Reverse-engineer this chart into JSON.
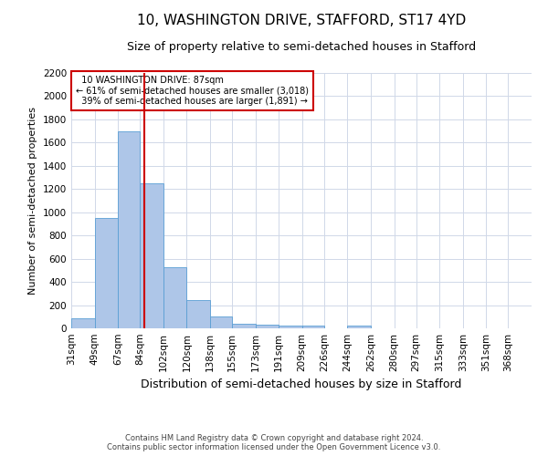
{
  "title": "10, WASHINGTON DRIVE, STAFFORD, ST17 4YD",
  "subtitle": "Size of property relative to semi-detached houses in Stafford",
  "xlabel": "Distribution of semi-detached houses by size in Stafford",
  "ylabel": "Number of semi-detached properties",
  "footer_line1": "Contains HM Land Registry data © Crown copyright and database right 2024.",
  "footer_line2": "Contains public sector information licensed under the Open Government Licence v3.0.",
  "annotation_title": "10 WASHINGTON DRIVE: 87sqm",
  "annotation_line1": "← 61% of semi-detached houses are smaller (3,018)",
  "annotation_line2": "39% of semi-detached houses are larger (1,891) →",
  "property_size": 87,
  "bar_edges": [
    31,
    49,
    67,
    84,
    102,
    120,
    138,
    155,
    173,
    191,
    209,
    226,
    244,
    262,
    280,
    297,
    315,
    333,
    351,
    368,
    386
  ],
  "bar_heights": [
    90,
    950,
    1700,
    1250,
    530,
    240,
    100,
    40,
    30,
    20,
    20,
    0,
    25,
    0,
    0,
    0,
    0,
    0,
    0,
    0
  ],
  "bar_color": "#aec6e8",
  "bar_edge_color": "#5a9fd4",
  "vline_color": "#cc0000",
  "vline_x": 87,
  "ylim": [
    0,
    2200
  ],
  "yticks": [
    0,
    200,
    400,
    600,
    800,
    1000,
    1200,
    1400,
    1600,
    1800,
    2000,
    2200
  ],
  "grid_color": "#d0d8e8",
  "title_fontsize": 11,
  "subtitle_fontsize": 9,
  "xlabel_fontsize": 9,
  "ylabel_fontsize": 8,
  "tick_fontsize": 7.5,
  "annotation_box_color": "#cc0000",
  "background_color": "#ffffff"
}
